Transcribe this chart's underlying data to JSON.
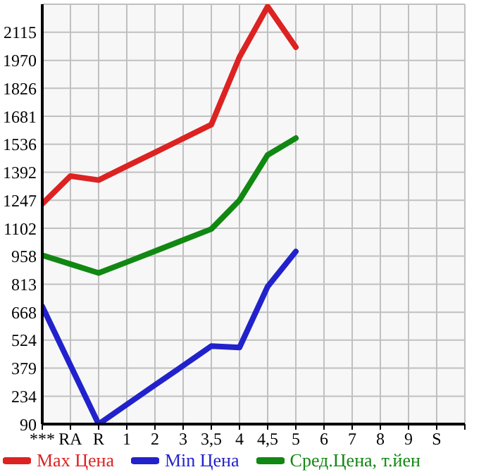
{
  "chart_data": {
    "type": "line",
    "categories": [
      "***",
      "RA",
      "R",
      "1",
      "2",
      "3",
      "3,5",
      "4",
      "4,5",
      "5",
      "6",
      "7",
      "8",
      "9",
      "S"
    ],
    "series": [
      {
        "name": "Max Цена",
        "color": "#dd2222",
        "values": [
          1228,
          1372,
          1351,
          1423,
          1494,
          1566,
          1638,
          1987,
          2248,
          2038,
          null,
          null,
          null,
          null,
          null
        ]
      },
      {
        "name": "Min Цена",
        "color": "#2222cc",
        "values": [
          698,
          394,
          90,
          191,
          292,
          392,
          493,
          486,
          801,
          982,
          null,
          null,
          null,
          null,
          null
        ]
      },
      {
        "name": "Сред.Цена, т.йен",
        "color": "#118811",
        "values": [
          963,
          917,
          871,
          927,
          984,
          1041,
          1098,
          1247,
          1481,
          1568,
          null,
          null,
          null,
          null,
          null
        ]
      }
    ],
    "ylim": [
      90,
      2260
    ],
    "yticks": [
      90,
      234,
      379,
      524,
      668,
      813,
      958,
      1102,
      1247,
      1392,
      1536,
      1681,
      1826,
      1970,
      2115
    ],
    "grid": true,
    "legend": "bottom",
    "marker": "none",
    "line_style": "solid"
  }
}
